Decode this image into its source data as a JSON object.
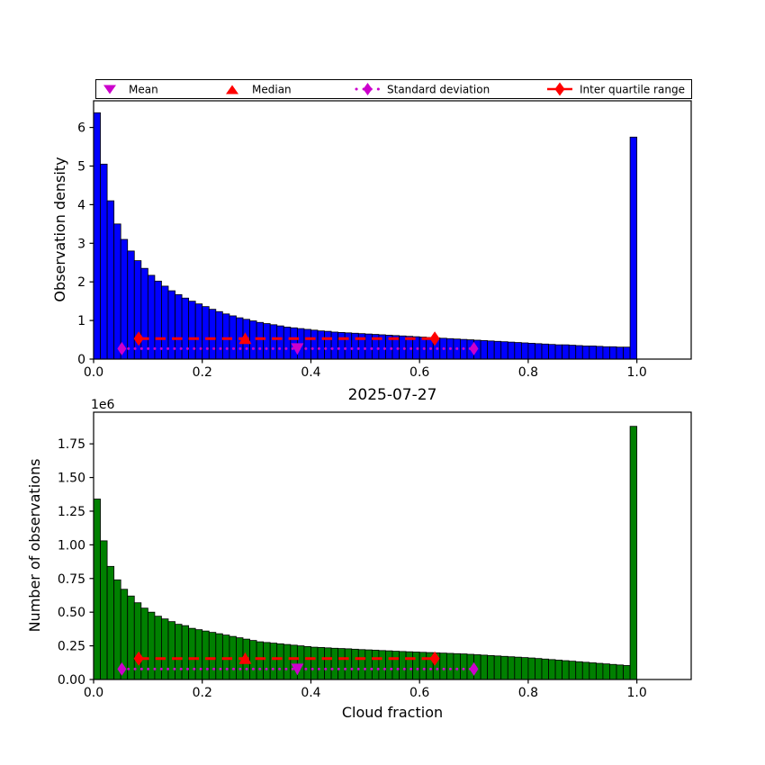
{
  "title": "2025-07-27",
  "xlabel": "Cloud fraction",
  "colors": {
    "density_bars": "#0000ff",
    "count_bars": "#008000",
    "red_markers": "#ff0000",
    "magenta_markers": "#cc00cc",
    "axis": "#000000",
    "background": "#ffffff"
  },
  "legend": {
    "items": [
      {
        "label": "Mean",
        "marker": "triangle-down-icon",
        "color": "#cc00cc"
      },
      {
        "label": "Median",
        "marker": "triangle-up-icon",
        "color": "#ff0000"
      },
      {
        "label": "Standard deviation",
        "marker": "diamond-dotted-icon",
        "color": "#cc00cc"
      },
      {
        "label": "Inter quartile range",
        "marker": "diamond-line-icon",
        "color": "#ff0000"
      }
    ]
  },
  "chart_data": [
    {
      "type": "bar",
      "name": "observation-density-histogram",
      "ylabel": "Observation density",
      "bar_color": "#0000ff",
      "bin_start": 0.0,
      "bin_width": 0.0125,
      "xlim": [
        0,
        1.1
      ],
      "ylim": [
        0,
        6.69
      ],
      "xticks": [
        0.0,
        0.2,
        0.4,
        0.6,
        0.8,
        1.0
      ],
      "xtick_labels": [
        "0.0",
        "0.2",
        "0.4",
        "0.6",
        "0.8",
        "1.0"
      ],
      "yticks": [
        0,
        1,
        2,
        3,
        4,
        5,
        6
      ],
      "ytick_labels": [
        "0",
        "1",
        "2",
        "3",
        "4",
        "5",
        "6"
      ],
      "y_offset_label": "",
      "grid": false,
      "values": [
        6.38,
        5.05,
        4.1,
        3.5,
        3.1,
        2.8,
        2.55,
        2.35,
        2.17,
        2.02,
        1.89,
        1.77,
        1.67,
        1.58,
        1.5,
        1.43,
        1.36,
        1.29,
        1.23,
        1.17,
        1.12,
        1.07,
        1.03,
        0.99,
        0.95,
        0.92,
        0.89,
        0.86,
        0.83,
        0.81,
        0.79,
        0.77,
        0.75,
        0.73,
        0.72,
        0.7,
        0.69,
        0.68,
        0.67,
        0.66,
        0.65,
        0.64,
        0.63,
        0.62,
        0.61,
        0.6,
        0.59,
        0.58,
        0.57,
        0.56,
        0.55,
        0.54,
        0.53,
        0.52,
        0.51,
        0.5,
        0.49,
        0.48,
        0.47,
        0.46,
        0.45,
        0.44,
        0.43,
        0.42,
        0.41,
        0.4,
        0.39,
        0.38,
        0.37,
        0.37,
        0.36,
        0.35,
        0.34,
        0.34,
        0.33,
        0.32,
        0.32,
        0.31,
        0.31,
        5.75
      ],
      "stats": {
        "mean": 0.375,
        "median": 0.279,
        "std_low": 0.052,
        "std_high": 0.7,
        "q1": 0.083,
        "q3": 0.628,
        "iqr_line_y": 0.53,
        "std_line_y": 0.27
      }
    },
    {
      "type": "bar",
      "name": "observation-count-histogram",
      "ylabel": "Number of observations",
      "bar_color": "#008000",
      "bin_start": 0.0,
      "bin_width": 0.0125,
      "xlim": [
        0,
        1.1
      ],
      "ylim": [
        0,
        1.985
      ],
      "xticks": [
        0.0,
        0.2,
        0.4,
        0.6,
        0.8,
        1.0
      ],
      "xtick_labels": [
        "0.0",
        "0.2",
        "0.4",
        "0.6",
        "0.8",
        "1.0"
      ],
      "yticks": [
        0.0,
        0.25,
        0.5,
        0.75,
        1.0,
        1.25,
        1.5,
        1.75
      ],
      "ytick_labels": [
        "0.00",
        "0.25",
        "0.50",
        "0.75",
        "1.00",
        "1.25",
        "1.50",
        "1.75"
      ],
      "y_offset_label": "1e6",
      "grid": false,
      "values_unit": "1e6",
      "values": [
        1.34,
        1.03,
        0.84,
        0.74,
        0.67,
        0.62,
        0.57,
        0.53,
        0.5,
        0.47,
        0.45,
        0.43,
        0.41,
        0.4,
        0.38,
        0.37,
        0.36,
        0.35,
        0.34,
        0.33,
        0.32,
        0.31,
        0.3,
        0.29,
        0.28,
        0.275,
        0.27,
        0.265,
        0.26,
        0.255,
        0.25,
        0.245,
        0.24,
        0.238,
        0.235,
        0.232,
        0.23,
        0.228,
        0.225,
        0.222,
        0.22,
        0.218,
        0.215,
        0.213,
        0.21,
        0.208,
        0.206,
        0.204,
        0.202,
        0.2,
        0.198,
        0.196,
        0.194,
        0.192,
        0.19,
        0.187,
        0.184,
        0.181,
        0.178,
        0.175,
        0.172,
        0.169,
        0.166,
        0.163,
        0.16,
        0.156,
        0.152,
        0.148,
        0.144,
        0.14,
        0.136,
        0.132,
        0.128,
        0.124,
        0.12,
        0.116,
        0.112,
        0.108,
        0.104,
        1.88
      ],
      "stats": {
        "mean": 0.375,
        "median": 0.279,
        "std_low": 0.052,
        "std_high": 0.7,
        "q1": 0.083,
        "q3": 0.628,
        "iqr_line_y": 0.155,
        "std_line_y": 0.078
      }
    }
  ]
}
